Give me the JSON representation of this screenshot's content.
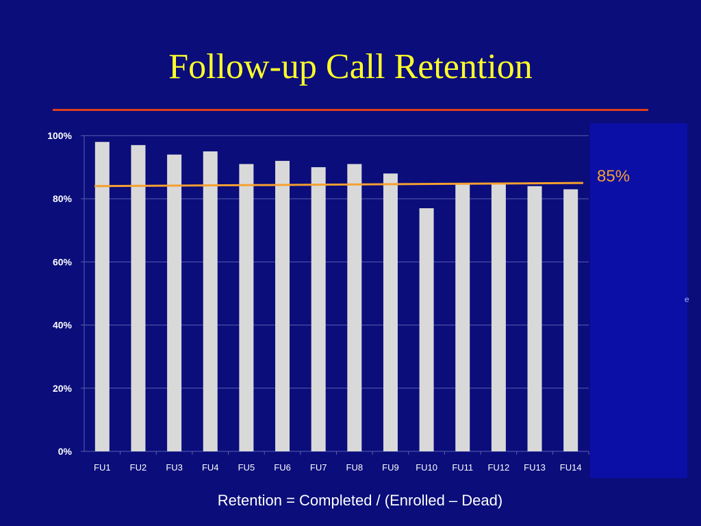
{
  "slide": {
    "title": "Follow-up Call Retention",
    "footer": "Retention = Completed / (Enrolled – Dead)",
    "panel_mark": "e"
  },
  "colors": {
    "background": "#0a0d7a",
    "title": "#ffff29",
    "rule": "#e0401c",
    "panel": "#0c0fa6",
    "bar": "#d9d9d9",
    "target_line": "#f5a030",
    "axis_text": "#ffffff",
    "grid": "#5a5fb0"
  },
  "chart_data": {
    "type": "bar",
    "categories": [
      "FU1",
      "FU2",
      "FU3",
      "FU4",
      "FU5",
      "FU6",
      "FU7",
      "FU8",
      "FU9",
      "FU10",
      "FU11",
      "FU12",
      "FU13",
      "FU14"
    ],
    "series": [
      {
        "values": [
          0.98,
          0.97,
          0.94,
          0.95,
          0.91,
          0.92,
          0.9,
          0.91,
          0.88,
          0.77,
          0.85,
          0.85,
          0.84,
          0.83
        ]
      }
    ],
    "ylim": [
      0,
      1
    ],
    "yticks": [
      0,
      0.2,
      0.4,
      0.6,
      0.8,
      1.0
    ],
    "ytick_labels": [
      "0%",
      "20%",
      "40%",
      "60%",
      "80%",
      "100%"
    ],
    "target_line": {
      "start": 0.84,
      "end": 0.85,
      "label": "85%"
    },
    "grid": true,
    "legend": "none"
  }
}
